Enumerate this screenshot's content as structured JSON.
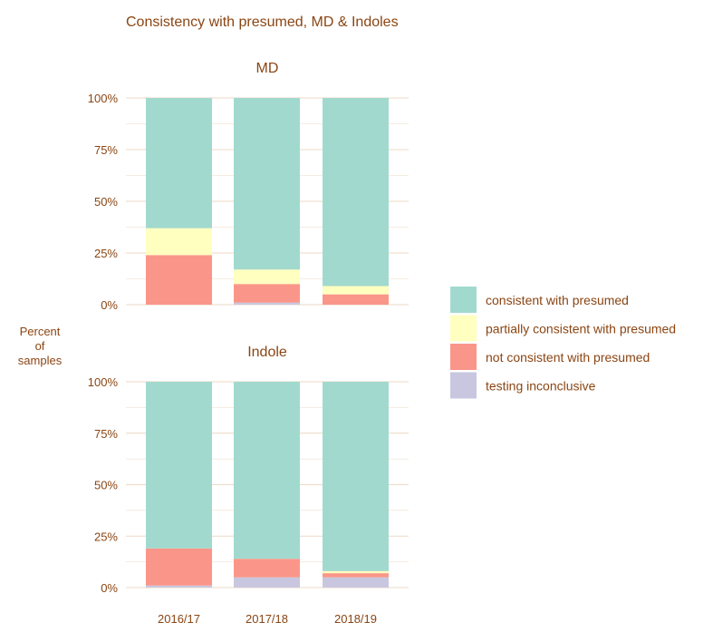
{
  "chart_data": {
    "type": "bar",
    "stacked": true,
    "percent": true,
    "title": "Consistency with presumed, MD & Indoles",
    "ylabel": "Percent\nof\nsamples",
    "ylim": [
      0,
      100
    ],
    "yticks": [
      "0%",
      "25%",
      "50%",
      "75%",
      "100%"
    ],
    "categories": [
      "2016/17",
      "2017/18",
      "2018/19"
    ],
    "legend_position": "right",
    "grid": true,
    "series_colors": {
      "testing inconclusive": "#c9c7df",
      "not consistent with presumed": "#fa9689",
      "partially consistent with presumed": "#ffffc0",
      "consistent with presumed": "#a2d9ce"
    },
    "legend": [
      {
        "name": "consistent with presumed",
        "color": "#a2d9ce"
      },
      {
        "name": "partially consistent with presumed",
        "color": "#ffffc0"
      },
      {
        "name": "not consistent with presumed",
        "color": "#fa9689"
      },
      {
        "name": "testing inconclusive",
        "color": "#c9c7df"
      }
    ],
    "panels": [
      {
        "title": "MD",
        "series": [
          {
            "name": "testing inconclusive",
            "values": [
              0,
              1,
              0
            ]
          },
          {
            "name": "not consistent with presumed",
            "values": [
              24,
              9,
              5
            ]
          },
          {
            "name": "partially consistent with presumed",
            "values": [
              13,
              7,
              4
            ]
          },
          {
            "name": "consistent with presumed",
            "values": [
              63,
              83,
              91
            ]
          }
        ]
      },
      {
        "title": "Indole",
        "series": [
          {
            "name": "testing inconclusive",
            "values": [
              1,
              5,
              5
            ]
          },
          {
            "name": "not consistent with presumed",
            "values": [
              18,
              9,
              2
            ]
          },
          {
            "name": "partially consistent with presumed",
            "values": [
              0,
              0,
              1
            ]
          },
          {
            "name": "consistent with presumed",
            "values": [
              81,
              86,
              92
            ]
          }
        ]
      }
    ]
  }
}
